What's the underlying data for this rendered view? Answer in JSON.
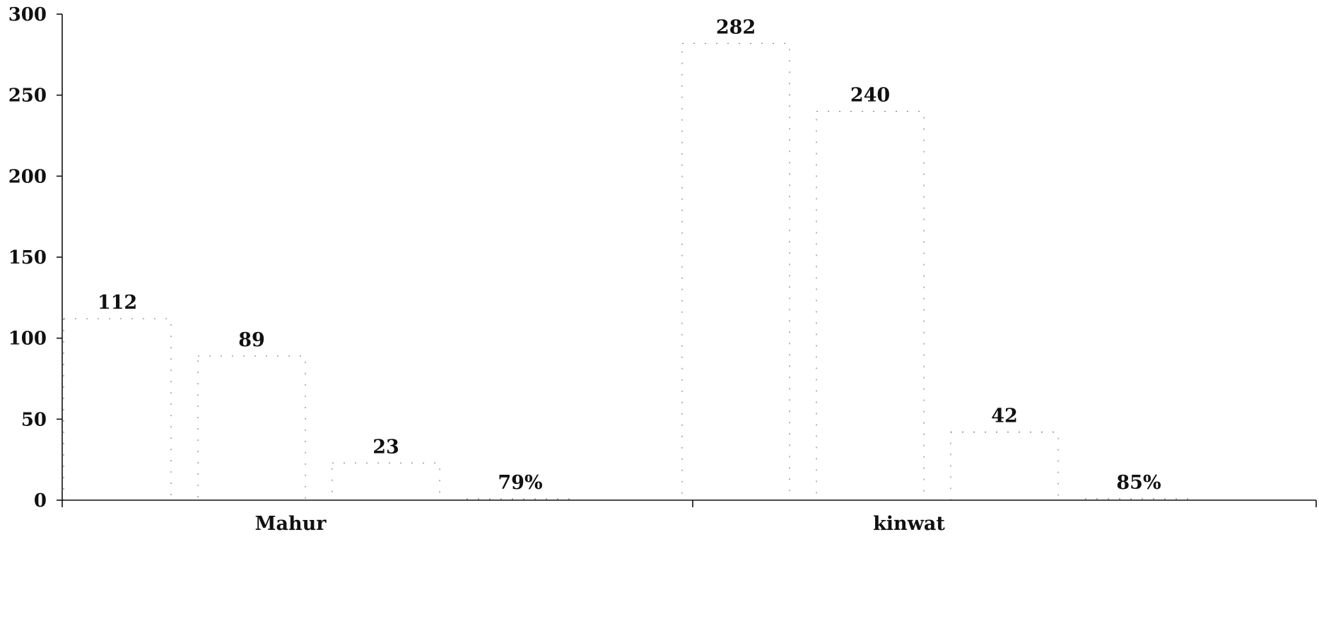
{
  "chart_data": {
    "type": "bar",
    "title": "",
    "xlabel": "",
    "ylabel": "",
    "ylim": [
      0,
      300
    ],
    "yticks": [
      0,
      50,
      100,
      150,
      200,
      250,
      300
    ],
    "grid": false,
    "categories": [
      "Mahur",
      "kinwat"
    ],
    "groups": [
      {
        "category": "Mahur",
        "bars": [
          {
            "value": 112,
            "label": "112"
          },
          {
            "value": 89,
            "label": "89"
          },
          {
            "value": 23,
            "label": "23"
          },
          {
            "value": 0.79,
            "label": "79%"
          }
        ]
      },
      {
        "category": "kinwat",
        "bars": [
          {
            "value": 282,
            "label": "282"
          },
          {
            "value": 240,
            "label": "240"
          },
          {
            "value": 42,
            "label": "42"
          },
          {
            "value": 0.85,
            "label": "85%"
          }
        ]
      }
    ]
  }
}
